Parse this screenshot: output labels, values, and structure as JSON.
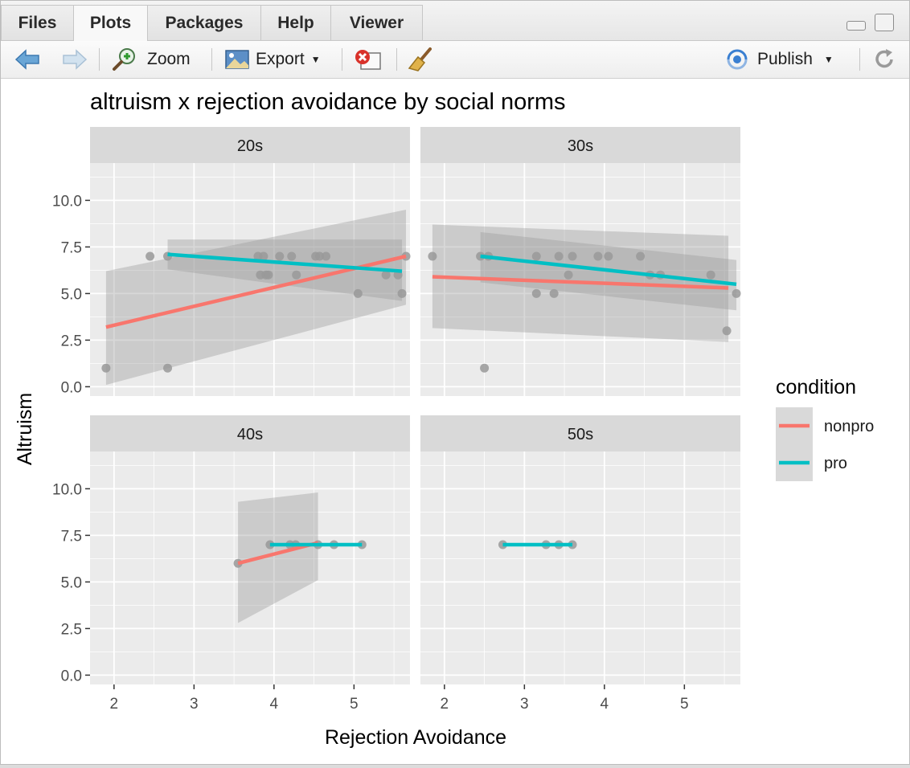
{
  "tabs": [
    {
      "label": "Files",
      "active": false
    },
    {
      "label": "Plots",
      "active": true
    },
    {
      "label": "Packages",
      "active": false
    },
    {
      "label": "Help",
      "active": false
    },
    {
      "label": "Viewer",
      "active": false
    }
  ],
  "toolbar": {
    "zoom_label": "Zoom",
    "export_label": "Export",
    "publish_label": "Publish"
  },
  "icons": {
    "back": "back-arrow-icon",
    "forward": "forward-arrow-icon",
    "zoom": "magnifier-icon",
    "export": "export-image-icon",
    "clear": "remove-plot-icon",
    "broom": "broom-icon",
    "publish": "publish-icon",
    "refresh": "refresh-icon"
  },
  "colors": {
    "nonpro": "#F8766D",
    "pro": "#00BFC4",
    "panel": "#EBEBEB",
    "strip": "#D9D9D9",
    "points": "#999999"
  },
  "chart_data": {
    "type": "scatter",
    "title": "altruism x rejection avoidance by social norms",
    "xlabel": "Rejection Avoidance",
    "ylabel": "Altruism",
    "x_ticks": [
      "2",
      "3",
      "4",
      "5"
    ],
    "y_ticks": [
      "0.0",
      "2.5",
      "5.0",
      "7.5",
      "10.0"
    ],
    "xlim": [
      1.7,
      5.7
    ],
    "ylim": [
      -0.5,
      12.0
    ],
    "grid": true,
    "legend_title": "condition",
    "legend_position": "right",
    "series_names": [
      "nonpro",
      "pro"
    ],
    "panels": [
      {
        "label": "20s",
        "points": [
          [
            1.9,
            1
          ],
          [
            2.45,
            7
          ],
          [
            2.67,
            7
          ],
          [
            2.67,
            1
          ],
          [
            3.8,
            7
          ],
          [
            3.87,
            7
          ],
          [
            3.83,
            6
          ],
          [
            3.9,
            6
          ],
          [
            3.93,
            6
          ],
          [
            4.07,
            7
          ],
          [
            4.22,
            7
          ],
          [
            4.28,
            6
          ],
          [
            4.52,
            7
          ],
          [
            4.57,
            7
          ],
          [
            4.65,
            7
          ],
          [
            5.05,
            5
          ],
          [
            5.4,
            6
          ],
          [
            5.55,
            6
          ],
          [
            5.6,
            5
          ],
          [
            5.65,
            7
          ]
        ],
        "lines": [
          {
            "series": "nonpro",
            "x": [
              1.9,
              5.65
            ],
            "y": [
              3.2,
              7.0
            ],
            "band_lower": [
              0.1,
              4.4
            ],
            "band_upper": [
              6.2,
              9.5
            ]
          },
          {
            "series": "pro",
            "x": [
              2.67,
              5.6
            ],
            "y": [
              7.1,
              6.2
            ],
            "band_lower": [
              6.3,
              4.6
            ],
            "band_upper": [
              7.9,
              7.9
            ]
          }
        ]
      },
      {
        "label": "30s",
        "points": [
          [
            1.85,
            7
          ],
          [
            2.45,
            7
          ],
          [
            2.55,
            7
          ],
          [
            2.5,
            1
          ],
          [
            3.15,
            7
          ],
          [
            3.15,
            5
          ],
          [
            3.37,
            5
          ],
          [
            3.43,
            7
          ],
          [
            3.55,
            6
          ],
          [
            3.6,
            7
          ],
          [
            3.92,
            7
          ],
          [
            4.05,
            7
          ],
          [
            4.45,
            7
          ],
          [
            4.57,
            6
          ],
          [
            4.7,
            6
          ],
          [
            5.33,
            6
          ],
          [
            5.53,
            3
          ],
          [
            5.65,
            5
          ]
        ],
        "lines": [
          {
            "series": "nonpro",
            "x": [
              1.85,
              5.55
            ],
            "y": [
              5.9,
              5.3
            ],
            "band_lower": [
              3.15,
              2.4
            ],
            "band_upper": [
              8.7,
              8.1
            ]
          },
          {
            "series": "pro",
            "x": [
              2.45,
              5.65
            ],
            "y": [
              7.0,
              5.5
            ],
            "band_lower": [
              5.6,
              4.1
            ],
            "band_upper": [
              8.3,
              6.8
            ]
          }
        ]
      },
      {
        "label": "40s",
        "points": [
          [
            3.55,
            6
          ],
          [
            3.95,
            7
          ],
          [
            4.2,
            7
          ],
          [
            4.27,
            7
          ],
          [
            4.55,
            7
          ],
          [
            4.75,
            7
          ],
          [
            5.1,
            7
          ]
        ],
        "lines": [
          {
            "series": "nonpro",
            "x": [
              3.55,
              4.55
            ],
            "y": [
              6.0,
              7.1
            ],
            "band_lower": [
              2.8,
              5.1
            ],
            "band_upper": [
              9.3,
              9.8
            ]
          },
          {
            "series": "pro",
            "x": [
              3.95,
              5.1
            ],
            "y": [
              7.0,
              7.0
            ],
            "band_lower": [
              7.0,
              7.0
            ],
            "band_upper": [
              7.0,
              7.0
            ]
          }
        ]
      },
      {
        "label": "50s",
        "points": [
          [
            2.73,
            7
          ],
          [
            3.27,
            7
          ],
          [
            3.43,
            7
          ],
          [
            3.6,
            7
          ]
        ],
        "lines": [
          {
            "series": "pro",
            "x": [
              2.73,
              3.6
            ],
            "y": [
              7.0,
              7.0
            ],
            "band_lower": [
              7.0,
              7.0
            ],
            "band_upper": [
              7.0,
              7.0
            ]
          }
        ]
      }
    ]
  }
}
